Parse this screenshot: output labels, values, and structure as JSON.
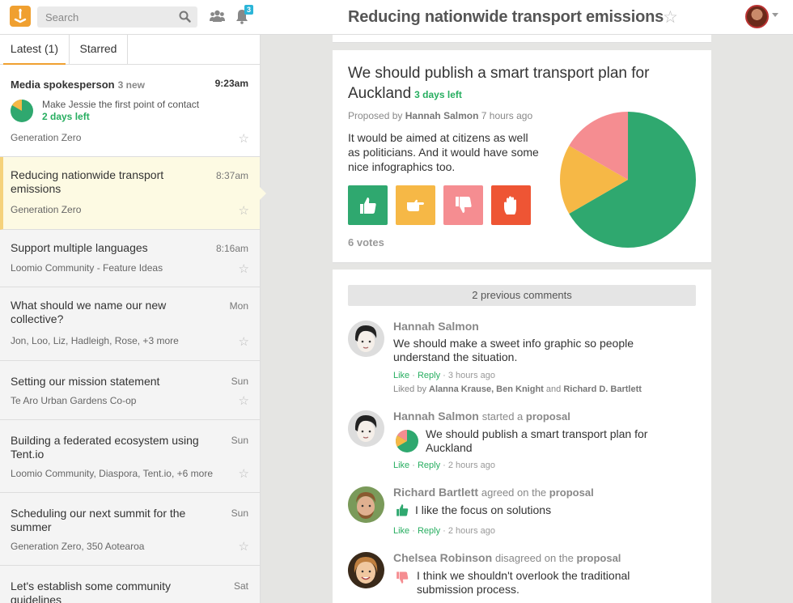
{
  "header": {
    "search_placeholder": "Search",
    "notification_count": "3",
    "discussion_title": "Reducing nationwide transport emissions",
    "star_glyph": "☆"
  },
  "sidebar": {
    "tabs": [
      {
        "label": "Latest (1)",
        "active": true
      },
      {
        "label": "Starred",
        "active": false
      }
    ],
    "items": [
      {
        "title": "Media spokesperson",
        "new_count": "3 new",
        "time": "9:23am",
        "proposal_text": "Make Jessie the first point of contact",
        "days_left": "2 days left",
        "group": "Generation Zero",
        "unread": true
      },
      {
        "title": "Reducing nationwide transport emissions",
        "time": "8:37am",
        "group": "Generation Zero",
        "active": true
      },
      {
        "title": "Support multiple languages",
        "time": "8:16am",
        "group": "Loomio Community - Feature Ideas"
      },
      {
        "title": "What should we name our new collective?",
        "time": "Mon",
        "group": "Jon, Loo, Liz, Hadleigh, Rose, +3 more"
      },
      {
        "title": "Setting our mission statement",
        "time": "Sun",
        "group": "Te Aro Urban Gardens Co-op"
      },
      {
        "title": "Building a federated ecosystem using Tent.io",
        "time": "Sun",
        "group": "Loomio Community, Diaspora, Tent.io, +6 more"
      },
      {
        "title": "Scheduling our next summit for the summer",
        "time": "Sun",
        "group": "Generation Zero, 350 Aotearoa"
      },
      {
        "title": "Let's establish some community guidelines",
        "time": "Sat",
        "group": ""
      }
    ]
  },
  "proposal": {
    "title": "We should publish a smart transport plan for Auckland",
    "days_left": "3 days left",
    "proposed_by_prefix": "Proposed by",
    "proposer": "Hannah Salmon",
    "proposed_when": "7 hours ago",
    "description": "It would be aimed at citizens as well as politicians. And it would have some nice infographics too.",
    "votes_label": "6 votes",
    "vote_buttons": [
      "agree",
      "abstain",
      "disagree",
      "block"
    ],
    "colors": {
      "agree": "#2fa86f",
      "abstain": "#f6b846",
      "disagree": "#f58d91",
      "block": "#ee5534"
    },
    "pie_fractions": {
      "agree": 0.6667,
      "abstain": 0.1667,
      "disagree": 0.1667
    }
  },
  "comments": {
    "previous_label": "2 previous comments",
    "like_label": "Like",
    "reply_label": "Reply",
    "items": [
      {
        "author": "Hannah Salmon",
        "body": "We should make a sweet info graphic so people understand the situation.",
        "time": "3 hours ago",
        "liked_prefix": "Liked by",
        "liked_names": "Alanna Krause, Ben Knight",
        "liked_and": "and",
        "liked_last": "Richard D. Bartlett"
      },
      {
        "author": "Hannah Salmon",
        "action_prefix": "started a",
        "action_target": "proposal",
        "body": "We should publish a smart transport plan for Auckland",
        "time": "2 hours ago"
      },
      {
        "author": "Richard Bartlett",
        "action_prefix": "agreed on the",
        "action_target": "proposal",
        "body": "I like the focus on solutions",
        "time": "2 hours ago"
      },
      {
        "author": "Chelsea Robinson",
        "action_prefix": "disagreed on the",
        "action_target": "proposal",
        "body": "I think we shouldn't overlook the traditional submission process."
      }
    ]
  }
}
